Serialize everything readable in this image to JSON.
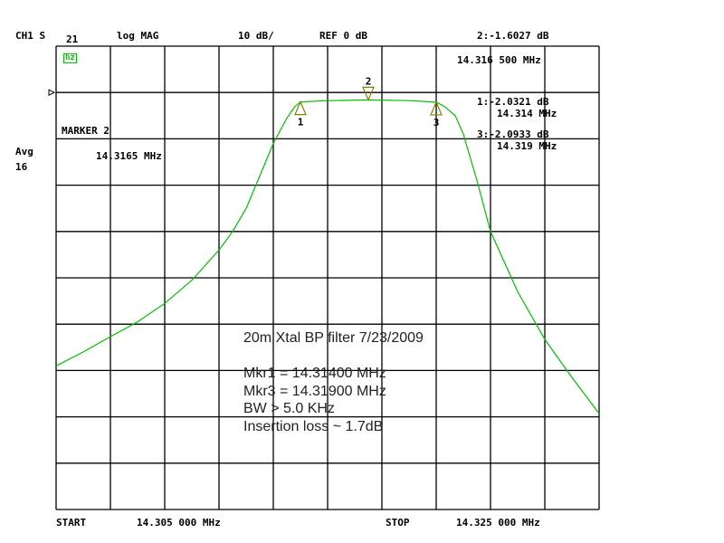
{
  "header": {
    "channel": "CH1 S",
    "param": "21",
    "format": "log MAG",
    "scale": "10 dB/",
    "ref": "REF 0 dB",
    "active_marker_value": "2:-1.6027 dB",
    "active_marker_freq": "14.316 500 MHz"
  },
  "left": {
    "marker_label": "MARKER 2",
    "marker_freq": "14.3165 MHz",
    "avg_label": "Avg",
    "avg_count": "16",
    "hold_badge": "hz"
  },
  "marker_readouts": [
    {
      "value": "1:-2.0321 dB",
      "freq": "14.314 MHz"
    },
    {
      "value": "3:-2.0933 dB",
      "freq": "14.319 MHz"
    }
  ],
  "footer": {
    "start_label": "START",
    "start_value": "14.305 000 MHz",
    "stop_label": "STOP",
    "stop_value": "14.325 000 MHz"
  },
  "annotation": [
    "20m Xtal BP filter 7/23/2009",
    "",
    "Mkr1 = 14.31400 MHz",
    "Mkr3 = 14.31900 MHz",
    "BW > 5.0 KHz",
    "Insertion loss ~ 1.7dB"
  ],
  "colors": {
    "trace": "#00c000",
    "marker": "#808000",
    "grid": "#000000"
  },
  "chart_data": {
    "type": "line",
    "xlabel": "",
    "ylabel": "",
    "xlim": [
      14.305,
      14.325
    ],
    "ylim": [
      -90,
      10
    ],
    "ref_level": 0,
    "grid": true,
    "x_divisions": 10,
    "y_divisions": 10,
    "series": [
      {
        "x": [
          14.305,
          14.306,
          14.307,
          14.308,
          14.309,
          14.31,
          14.311,
          14.3115,
          14.312,
          14.3125,
          14.313,
          14.3135,
          14.3138,
          14.314,
          14.315,
          14.3165,
          14.318,
          14.319,
          14.3193,
          14.3197,
          14.32,
          14.3205,
          14.321,
          14.322,
          14.323,
          14.324,
          14.325
        ],
        "y": [
          -59,
          -56,
          -52.7,
          -49.5,
          -45.5,
          -40.5,
          -34,
          -30,
          -25,
          -18,
          -11,
          -5.5,
          -3,
          -2.03,
          -1.75,
          -1.6,
          -1.75,
          -2.09,
          -3,
          -5,
          -9,
          -19,
          -30,
          -43,
          -53.3,
          -61.5,
          -69.3
        ]
      }
    ],
    "markers": [
      {
        "id": "1",
        "x": 14.314,
        "y": -2.0321,
        "direction": "up"
      },
      {
        "id": "2",
        "x": 14.3165,
        "y": -1.6027,
        "direction": "down"
      },
      {
        "id": "3",
        "x": 14.319,
        "y": -2.0933,
        "direction": "up"
      }
    ]
  }
}
